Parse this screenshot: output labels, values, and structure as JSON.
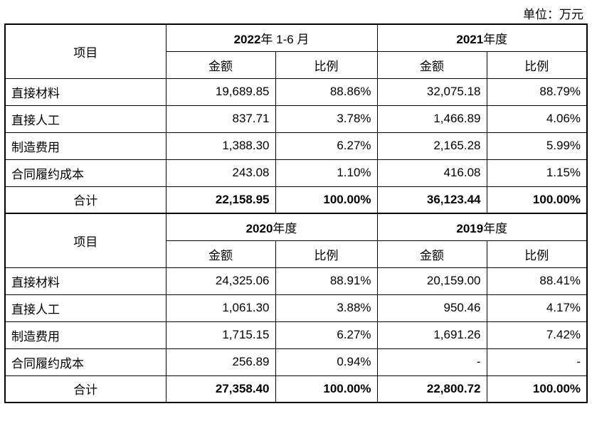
{
  "unit_label": "单位：万元",
  "item_header": "项目",
  "amount_header": "金额",
  "ratio_header": "比例",
  "blocks": [
    {
      "periods": [
        {
          "year": "2022",
          "suffix": "年 1-6 月"
        },
        {
          "year": "2021",
          "suffix": "年度"
        }
      ],
      "rows": [
        {
          "label": "直接材料",
          "cells": [
            "19,689.85",
            "88.86%",
            "32,075.18",
            "88.79%"
          ]
        },
        {
          "label": "直接人工",
          "cells": [
            "837.71",
            "3.78%",
            "1,466.89",
            "4.06%"
          ]
        },
        {
          "label": "制造费用",
          "cells": [
            "1,388.30",
            "6.27%",
            "2,165.28",
            "5.99%"
          ]
        },
        {
          "label": "合同履约成本",
          "cells": [
            "243.08",
            "1.10%",
            "416.08",
            "1.15%"
          ]
        }
      ],
      "total": {
        "label": "合计",
        "cells": [
          "22,158.95",
          "100.00%",
          "36,123.44",
          "100.00%"
        ]
      }
    },
    {
      "periods": [
        {
          "year": "2020",
          "suffix": "年度"
        },
        {
          "year": "2019",
          "suffix": "年度"
        }
      ],
      "rows": [
        {
          "label": "直接材料",
          "cells": [
            "24,325.06",
            "88.91%",
            "20,159.00",
            "88.41%"
          ]
        },
        {
          "label": "直接人工",
          "cells": [
            "1,061.30",
            "3.88%",
            "950.46",
            "4.17%"
          ]
        },
        {
          "label": "制造费用",
          "cells": [
            "1,715.15",
            "6.27%",
            "1,691.26",
            "7.42%"
          ]
        },
        {
          "label": "合同履约成本",
          "cells": [
            "256.89",
            "0.94%",
            "-",
            "-"
          ]
        }
      ],
      "total": {
        "label": "合计",
        "cells": [
          "27,358.40",
          "100.00%",
          "22,800.72",
          "100.00%"
        ]
      }
    }
  ]
}
